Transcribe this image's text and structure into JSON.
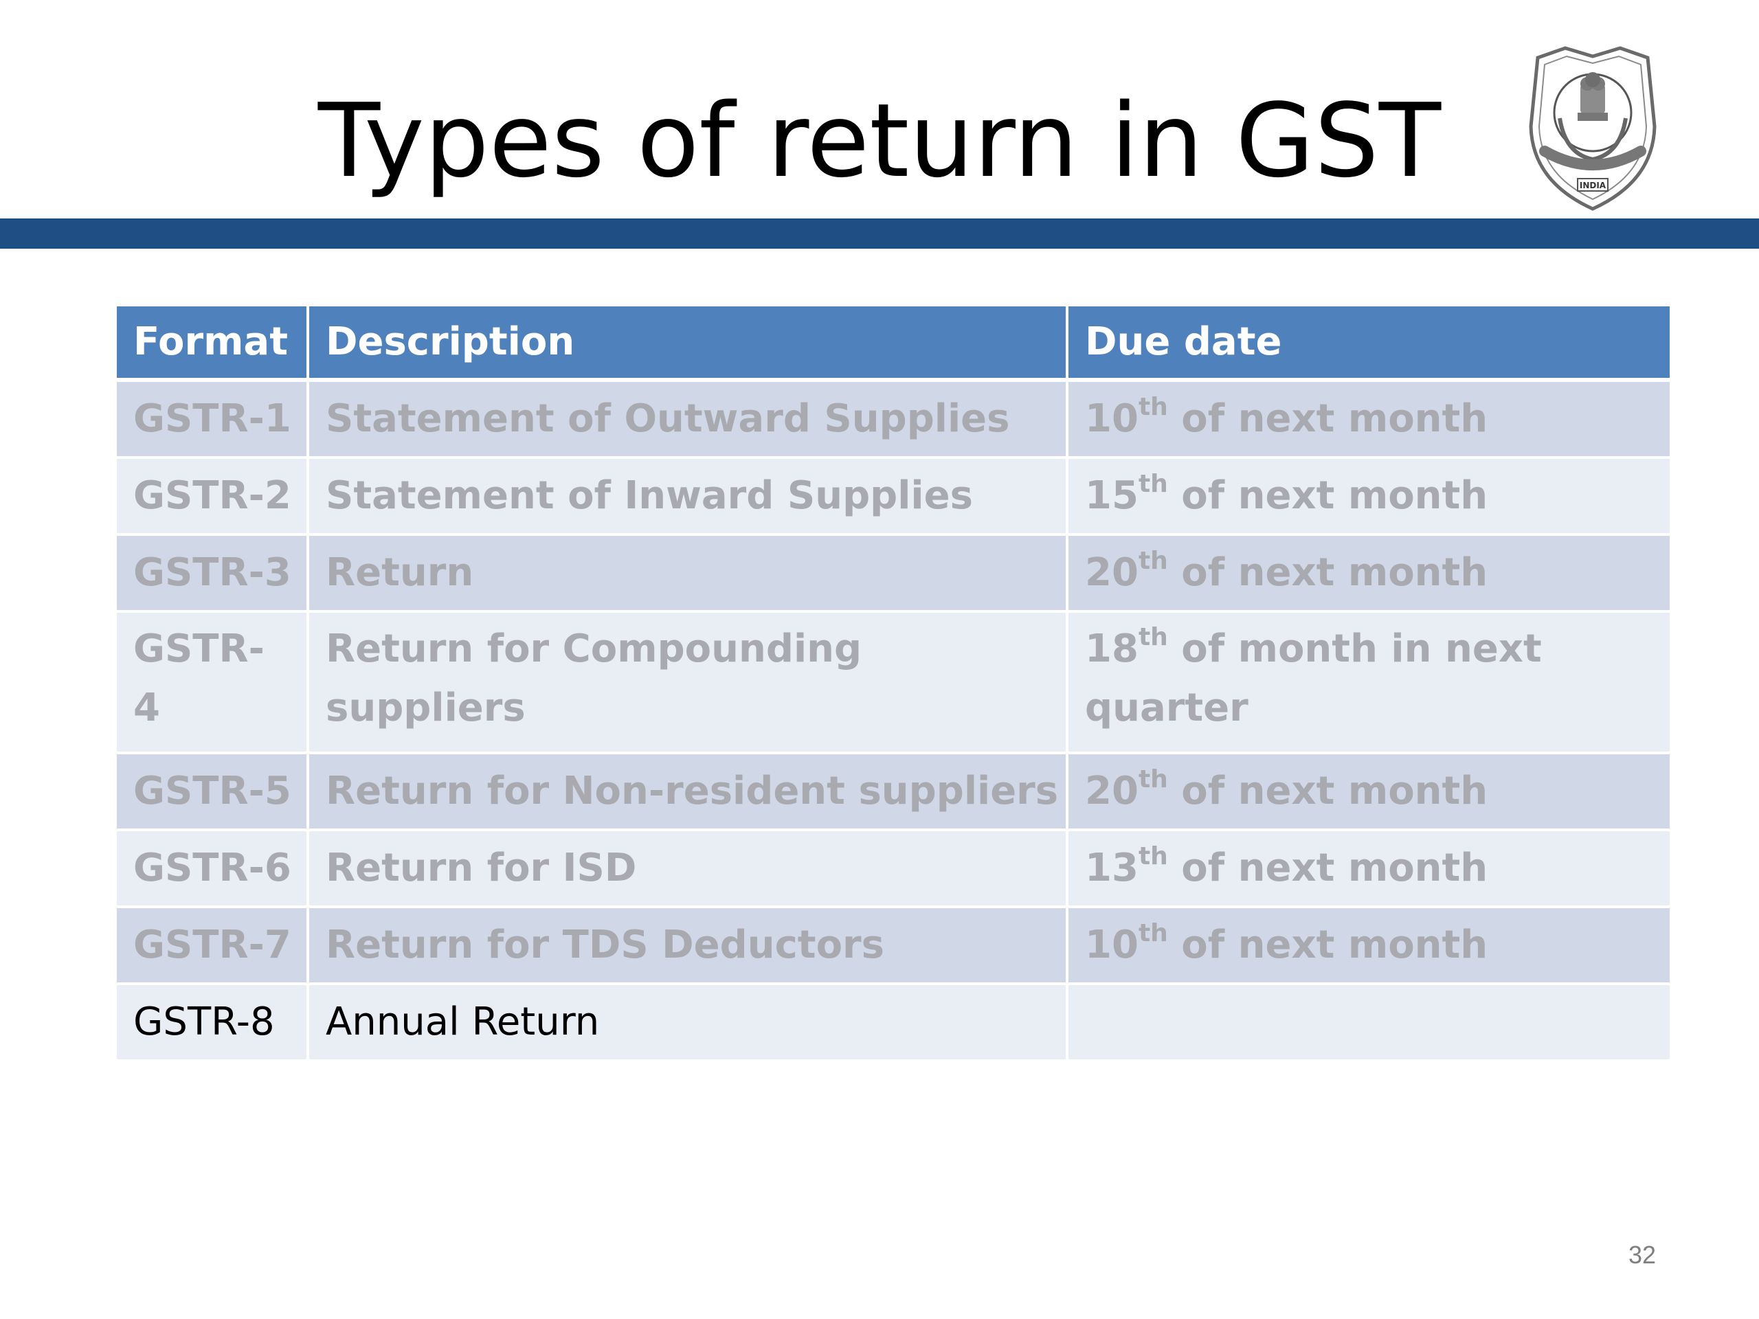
{
  "slide": {
    "title": "Types of return in GST",
    "page_number": "32",
    "accent_color": "#1f4e85",
    "header_color": "#4f81bd",
    "emblem_icon": "government-emblem-seal",
    "emblem_text": "INDIA"
  },
  "table": {
    "headers": {
      "format": "Format",
      "description": "Description",
      "due_date": "Due date"
    },
    "rows": [
      {
        "format": "GSTR-1",
        "description": "Statement of Outward Supplies",
        "due_num": "10",
        "due_sup": "th",
        "due_rest": " of next month"
      },
      {
        "format": "GSTR-2",
        "description": "Statement of Inward Supplies",
        "due_num": "15",
        "due_sup": "th",
        "due_rest": " of next month"
      },
      {
        "format": "GSTR-3",
        "description": "Return",
        "due_num": "20",
        "due_sup": "th",
        "due_rest": " of next month"
      },
      {
        "format": "GSTR-4",
        "description": "Return for Compounding suppliers",
        "due_num": "18",
        "due_sup": "th",
        "due_rest": " of month in next quarter"
      },
      {
        "format": "GSTR-5",
        "description": "Return for Non-resident suppliers",
        "due_num": "20",
        "due_sup": "th",
        "due_rest": " of next month"
      },
      {
        "format": "GSTR-6",
        "description": "Return for ISD",
        "due_num": "13",
        "due_sup": "th",
        "due_rest": " of next month"
      },
      {
        "format": "GSTR-7",
        "description": "Return for TDS Deductors",
        "due_num": "10",
        "due_sup": "th",
        "due_rest": " of next month"
      },
      {
        "format": "GSTR-8",
        "description": "Annual Return",
        "due_num": "",
        "due_sup": "",
        "due_rest": ""
      }
    ]
  }
}
